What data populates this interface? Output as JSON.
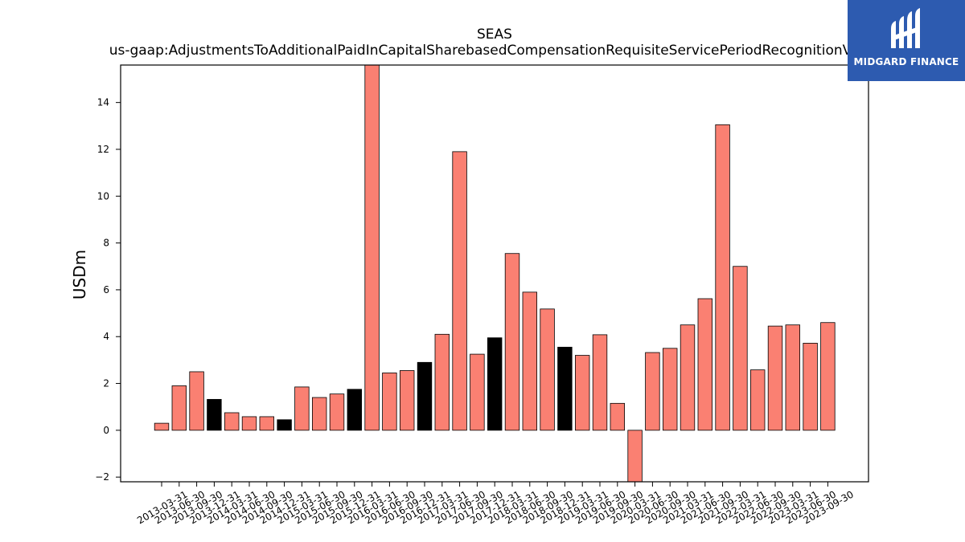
{
  "chart_data": {
    "type": "bar",
    "title": "SEAS",
    "subtitle": "us-gaap:AdjustmentsToAdditionalPaidInCapitalSharebasedCompensationRequisiteServicePeriodRecognitionValue",
    "xlabel": "",
    "ylabel": "USDm",
    "ylim": [
      -2.2,
      15.6
    ],
    "yticks": [
      -2,
      0,
      2,
      4,
      6,
      8,
      10,
      12,
      14
    ],
    "grid": false,
    "colors": {
      "default": "#fa8072",
      "highlight": "#000000",
      "edge": "#000000"
    },
    "categories": [
      "2013-03-31",
      "2013-06-30",
      "2013-09-30",
      "2013-12-31",
      "2014-03-31",
      "2014-06-30",
      "2014-09-30",
      "2014-12-31",
      "2015-03-31",
      "2015-06-30",
      "2015-09-30",
      "2015-12-31",
      "2016-03-31",
      "2016-06-30",
      "2016-09-30",
      "2016-12-31",
      "2017-03-31",
      "2017-06-30",
      "2017-09-30",
      "2017-12-31",
      "2018-03-31",
      "2018-06-30",
      "2018-09-30",
      "2018-12-31",
      "2019-03-31",
      "2019-06-30",
      "2019-09-30",
      "2020-03-31",
      "2020-06-30",
      "2020-09-30",
      "2021-03-31",
      "2021-06-30",
      "2021-09-30",
      "2022-03-31",
      "2022-06-30",
      "2022-09-30",
      "2023-03-31",
      "2023-06-30",
      "2023-09-30"
    ],
    "values": [
      0.3,
      1.9,
      2.5,
      1.32,
      0.75,
      0.58,
      0.58,
      0.45,
      1.85,
      1.4,
      1.55,
      1.75,
      15.8,
      2.45,
      2.55,
      2.9,
      4.1,
      11.9,
      3.25,
      3.95,
      7.55,
      5.9,
      5.18,
      3.55,
      3.2,
      4.08,
      1.15,
      -2.3,
      3.32,
      3.5,
      4.5,
      5.62,
      13.05,
      7.0,
      2.58,
      4.45,
      4.5,
      3.72,
      4.6
    ],
    "highlight": [
      false,
      false,
      false,
      true,
      false,
      false,
      false,
      true,
      false,
      false,
      false,
      true,
      false,
      false,
      false,
      true,
      false,
      false,
      false,
      true,
      false,
      false,
      false,
      true,
      false,
      false,
      false,
      false,
      false,
      false,
      false,
      false,
      false,
      false,
      false,
      false,
      false,
      false,
      false
    ]
  },
  "logo": {
    "name": "MIDGARD FINANCE",
    "background": "#2d5bb0"
  }
}
